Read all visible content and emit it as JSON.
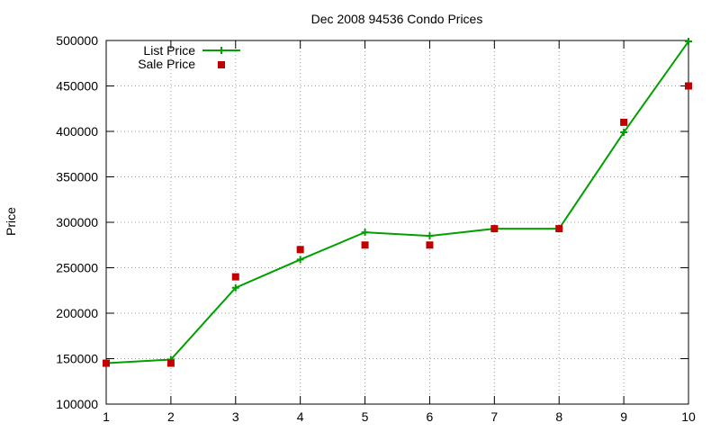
{
  "chart_data": {
    "type": "line",
    "title": "Dec 2008 94536 Condo Prices",
    "xlabel": "",
    "ylabel": "Price",
    "x": [
      1,
      2,
      3,
      4,
      5,
      6,
      7,
      8,
      9,
      10
    ],
    "xlim": [
      1,
      10
    ],
    "ylim": [
      100000,
      500000
    ],
    "xticks": [
      1,
      2,
      3,
      4,
      5,
      6,
      7,
      8,
      9,
      10
    ],
    "yticks": [
      100000,
      150000,
      200000,
      250000,
      300000,
      350000,
      400000,
      450000,
      500000
    ],
    "grid": true,
    "legend_position": "top-left",
    "series": [
      {
        "name": "List Price",
        "style": "line-with-plus-markers",
        "color": "#00a000",
        "values": [
          145000,
          149000,
          228000,
          259000,
          289000,
          285000,
          293000,
          293000,
          399000,
          499000
        ]
      },
      {
        "name": "Sale Price",
        "style": "square-markers",
        "color": "#c00000",
        "values": [
          145000,
          145000,
          240000,
          270000,
          275000,
          275000,
          293000,
          293000,
          410000,
          450000
        ]
      }
    ]
  }
}
